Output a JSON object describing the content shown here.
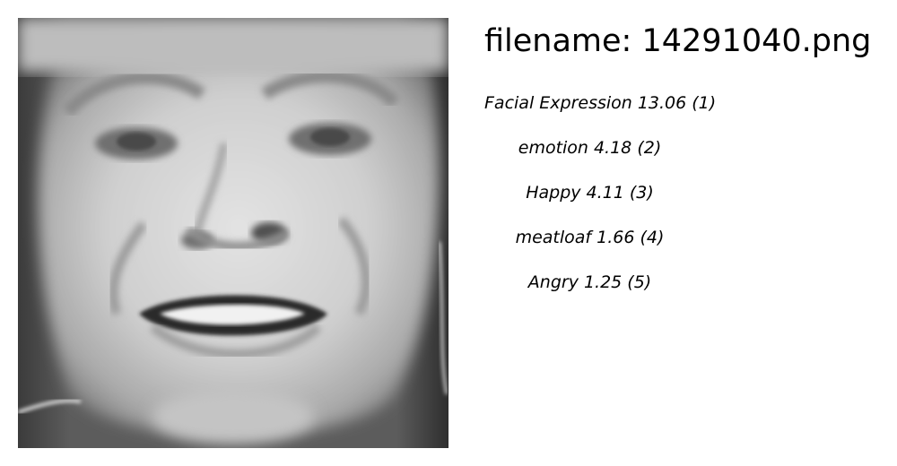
{
  "image": {
    "subject": "grayscale-face-photo"
  },
  "filename_line": "filename: 14291040.png",
  "results": [
    {
      "label": "Facial Expression",
      "score": "13.06",
      "rank": "(1)"
    },
    {
      "label": "emotion",
      "score": "4.18",
      "rank": "(2)"
    },
    {
      "label": "Happy",
      "score": "4.11",
      "rank": "(3)"
    },
    {
      "label": "meatloaf",
      "score": "1.66",
      "rank": "(4)"
    },
    {
      "label": "Angry",
      "score": "1.25",
      "rank": "(5)"
    }
  ]
}
